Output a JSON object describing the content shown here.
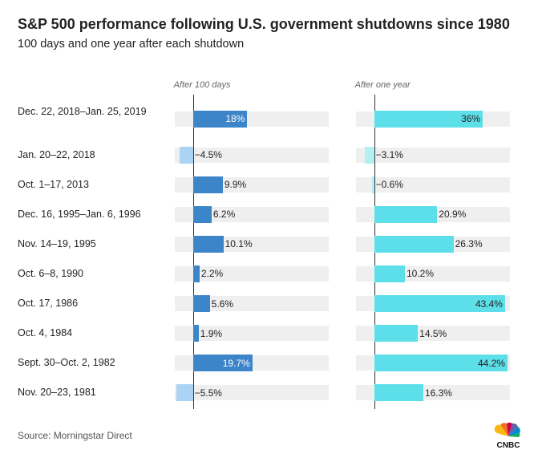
{
  "chart_data": {
    "type": "bar",
    "orientation": "horizontal",
    "title": "S&P 500 performance following U.S. government shutdowns since 1980",
    "subtitle": "100 days and one year after each shutdown",
    "source": "Source: Morningstar Direct",
    "logo": "CNBC",
    "categories": [
      "Dec. 22, 2018–Jan. 25, 2019",
      "Jan. 20–22, 2018",
      "Oct. 1–17, 2013",
      "Dec. 16, 1995–Jan. 6, 1996",
      "Nov. 14–19, 1995",
      "Oct. 6–8, 1990",
      "Oct. 17, 1986",
      "Oct. 4, 1984",
      "Sept. 30–Oct. 2, 1982",
      "Nov. 20–23, 1981"
    ],
    "xlim": [
      -6,
      45
    ],
    "series": [
      {
        "name": "After 100 days",
        "color": "#3d85c9",
        "negative_color": "#aad3f4",
        "values": [
          18,
          -4.5,
          9.9,
          6.2,
          10.1,
          2.2,
          5.6,
          1.9,
          19.7,
          -5.5
        ],
        "value_labels": [
          "18%",
          "−4.5%",
          "9.9%",
          "6.2%",
          "10.1%",
          "2.2%",
          "5.6%",
          "1.9%",
          "19.7%",
          "−5.5%"
        ]
      },
      {
        "name": "After one year",
        "color": "#5ddfea",
        "negative_color": "#b3f0f4",
        "values": [
          36,
          -3.1,
          -0.6,
          20.9,
          26.3,
          10.2,
          43.4,
          14.5,
          44.2,
          16.3
        ],
        "value_labels": [
          "36%",
          "−3.1%",
          "−0.6%",
          "20.9%",
          "26.3%",
          "10.2%",
          "43.4%",
          "14.5%",
          "44.2%",
          "16.3%"
        ]
      }
    ]
  }
}
